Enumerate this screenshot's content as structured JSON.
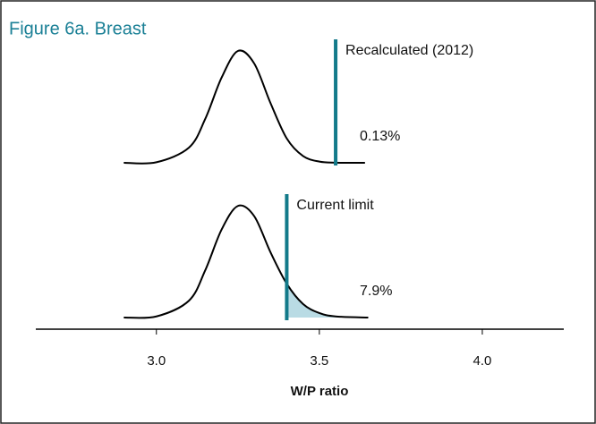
{
  "chart_data": {
    "type": "density",
    "title": "Figure 6a. Breast",
    "x_label": "W/P ratio",
    "xlim": [
      2.63,
      4.25
    ],
    "xticks": [
      {
        "value": 3.0,
        "label": "3.0"
      },
      3.5,
      {
        "value": 4.0,
        "label": "4.0"
      }
    ],
    "curve_color": "#000000",
    "marker_color": "#137a8a",
    "shade_color": "#b9dbe4",
    "title_color": "#1b8096",
    "panels": [
      {
        "x": [
          2.9,
          3.0,
          3.1,
          3.15,
          3.2,
          3.25,
          3.3,
          3.35,
          3.4,
          3.45,
          3.5,
          3.55,
          3.64
        ],
        "values": [
          0,
          0.005,
          0.135,
          0.39,
          0.755,
          0.992,
          0.882,
          0.531,
          0.216,
          0.06,
          0.011,
          0.001,
          0
        ],
        "marker": 3.55,
        "marker_label": "Recalculated (2012)",
        "tail_value": 0.13,
        "tail_label": "0.13%",
        "shaded": false
      },
      {
        "x": [
          2.9,
          3.0,
          3.1,
          3.15,
          3.2,
          3.25,
          3.3,
          3.35,
          3.4,
          3.45,
          3.5,
          3.55,
          3.65
        ],
        "values": [
          0,
          0.01,
          0.15,
          0.42,
          0.78,
          0.99,
          0.9,
          0.58,
          0.3,
          0.12,
          0.04,
          0.01,
          0
        ],
        "marker": 3.4,
        "marker_label": "Current limit",
        "tail_value": 7.9,
        "tail_label": "7.9%",
        "shaded": true
      }
    ]
  }
}
